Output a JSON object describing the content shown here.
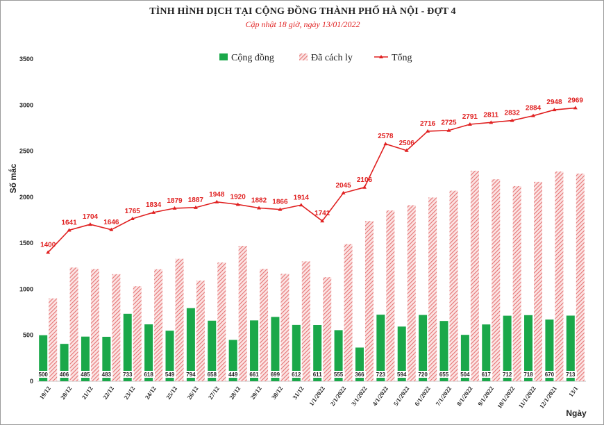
{
  "title": "TÌNH HÌNH DỊCH TẠI CỘNG ĐỒNG THÀNH PHỐ HÀ NỘI - ĐỢT 4",
  "subtitle": "Cập nhật 18 giờ, ngày 13/01/2022",
  "colors": {
    "community": "#1aa84a",
    "isolated": "#e57373",
    "total": "#e02020",
    "grid": "#d9d9d9"
  },
  "chart_data": {
    "type": "bar",
    "title": "TÌNH HÌNH DỊCH TẠI CỘNG ĐỒNG THÀNH PHỐ HÀ NỘI - ĐỢT 4",
    "subtitle": "Cập nhật 18 giờ, ngày 13/01/2022",
    "xlabel": "Ngày",
    "ylabel": "Số mắc",
    "ylim": [
      0,
      3500
    ],
    "yticks": [
      0,
      500,
      1000,
      1500,
      2000,
      2500,
      3000,
      3500
    ],
    "grid": false,
    "legend_position": "top",
    "categories": [
      "19/12",
      "20/12",
      "21/12",
      "22/12",
      "23/12",
      "24/12",
      "25/12",
      "26/12",
      "27/12",
      "28/12",
      "29/12",
      "30/12",
      "31/12",
      "1/1/2022",
      "2/1/2022",
      "3/1/2022",
      "4/1/2022",
      "5/1/2022",
      "6/1/2022",
      "7/1/2022",
      "8/1/2022",
      "9/1/2022",
      "10/1/2022",
      "11/1/2022",
      "12/1/2021",
      "13/1"
    ],
    "series": [
      {
        "name": "Cộng đồng",
        "type": "bar",
        "values": [
          500,
          406,
          485,
          483,
          733,
          618,
          549,
          794,
          658,
          449,
          661,
          699,
          612,
          611,
          555,
          366,
          723,
          594,
          720,
          655,
          504,
          617,
          712,
          718,
          670,
          713
        ]
      },
      {
        "name": "Đã cách ly",
        "type": "bar",
        "values": [
          900,
          1235,
          1219,
          1163,
          1032,
          1216,
          1330,
          1093,
          1290,
          1471,
          1221,
          1167,
          1302,
          1130,
          1490,
          1740,
          1855,
          1912,
          1996,
          2070,
          2287,
          2194,
          2120,
          2166,
          2278,
          2256
        ]
      },
      {
        "name": "Tổng",
        "type": "line",
        "values": [
          1400,
          1641,
          1704,
          1646,
          1765,
          1834,
          1879,
          1887,
          1948,
          1920,
          1882,
          1866,
          1914,
          1741,
          2045,
          2106,
          2578,
          2506,
          2716,
          2725,
          2791,
          2811,
          2832,
          2884,
          2948,
          2969
        ]
      }
    ]
  }
}
